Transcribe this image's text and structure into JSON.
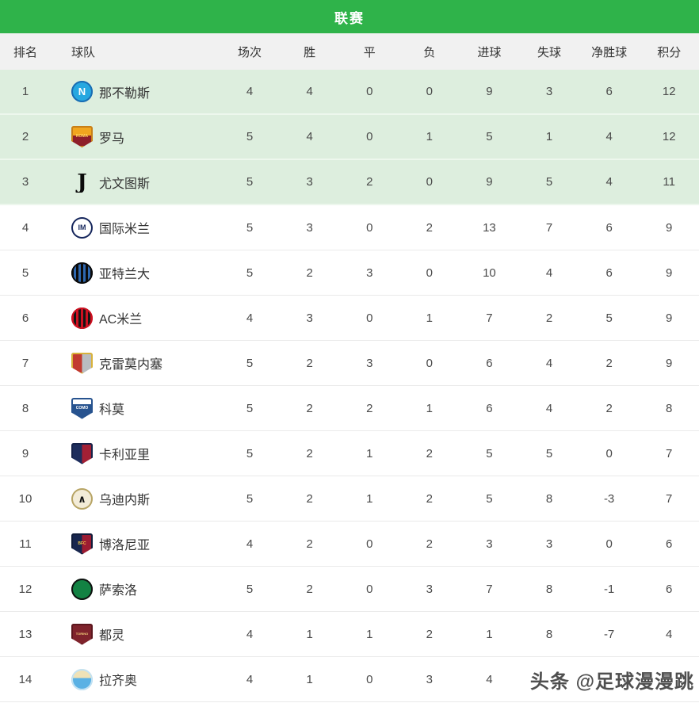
{
  "title": "联赛",
  "columns": [
    "排名",
    "球队",
    "场次",
    "胜",
    "平",
    "负",
    "进球",
    "失球",
    "净胜球",
    "积分"
  ],
  "watermark": "头条 @足球漫漫跳",
  "colors": {
    "header_green": "#2fb34a",
    "highlight_row_green": "#ddeede",
    "column_header_bg": "#f1f1f1"
  },
  "rows": [
    {
      "rank": "1",
      "name": "那不勒斯",
      "p": "4",
      "w": "4",
      "d": "0",
      "l": "0",
      "gf": "9",
      "ga": "3",
      "gd": "6",
      "pts": "12",
      "highlight": true,
      "logo": {
        "shape": "circle",
        "bg": "#27a8e0",
        "ring": "#1a6cb2",
        "label": "N",
        "labelColor": "#ffffff",
        "labelSize": 13
      }
    },
    {
      "rank": "2",
      "name": "罗马",
      "p": "5",
      "w": "4",
      "d": "0",
      "l": "1",
      "gf": "5",
      "ga": "1",
      "gd": "4",
      "pts": "12",
      "highlight": true,
      "logo": {
        "shape": "shield",
        "bg": "linear-gradient(180deg,#f1a61f 45%,#8e1f2a 45%)",
        "ring": "#c87f18",
        "label": "ROMA",
        "labelColor": "#ffd35e",
        "labelSize": 5
      }
    },
    {
      "rank": "3",
      "name": "尤文图斯",
      "p": "5",
      "w": "3",
      "d": "2",
      "l": "0",
      "gf": "9",
      "ga": "5",
      "gd": "4",
      "pts": "11",
      "highlight": true,
      "logo": {
        "shape": "glyph",
        "bg": "transparent",
        "ring": "",
        "label": "J",
        "labelColor": "#0a0a0a",
        "labelSize": 26
      }
    },
    {
      "rank": "4",
      "name": "国际米兰",
      "p": "5",
      "w": "3",
      "d": "0",
      "l": "2",
      "gf": "13",
      "ga": "7",
      "gd": "6",
      "pts": "9",
      "highlight": false,
      "logo": {
        "shape": "circle",
        "bg": "#ffffff",
        "ring": "#15265c",
        "label": "IM",
        "labelColor": "#15265c",
        "labelSize": 9
      }
    },
    {
      "rank": "5",
      "name": "亚特兰大",
      "p": "5",
      "w": "2",
      "d": "3",
      "l": "0",
      "gf": "10",
      "ga": "4",
      "gd": "6",
      "pts": "9",
      "highlight": false,
      "logo": {
        "shape": "circle",
        "bg": "repeating-linear-gradient(90deg,#0b0b0b 0px,#0b0b0b 3px,#2e68b0 3px,#2e68b0 6px)",
        "ring": "#0b0b0b",
        "label": "",
        "labelColor": "#ffffff",
        "labelSize": 6
      }
    },
    {
      "rank": "6",
      "name": "AC米兰",
      "p": "4",
      "w": "3",
      "d": "0",
      "l": "1",
      "gf": "7",
      "ga": "2",
      "gd": "5",
      "pts": "9",
      "highlight": false,
      "logo": {
        "shape": "circle",
        "bg": "repeating-linear-gradient(90deg,#cf1020 0px,#cf1020 3px,#151515 3px,#151515 6px)",
        "ring": "#cf1020",
        "label": "",
        "labelColor": "#ffffff",
        "labelSize": 6
      }
    },
    {
      "rank": "7",
      "name": "克雷莫内塞",
      "p": "5",
      "w": "2",
      "d": "3",
      "l": "0",
      "gf": "6",
      "ga": "4",
      "gd": "2",
      "pts": "9",
      "highlight": false,
      "logo": {
        "shape": "shield",
        "bg": "linear-gradient(90deg,#c23a2f 50%,#b9bdc1 50%)",
        "ring": "#d8b23a",
        "label": "",
        "labelColor": "#ffffff",
        "labelSize": 6
      }
    },
    {
      "rank": "8",
      "name": "科莫",
      "p": "5",
      "w": "2",
      "d": "2",
      "l": "1",
      "gf": "6",
      "ga": "4",
      "gd": "2",
      "pts": "8",
      "highlight": false,
      "logo": {
        "shape": "shield",
        "bg": "linear-gradient(180deg,#ffffff 30%,#27538f 30%)",
        "ring": "#27538f",
        "label": "COMO",
        "labelColor": "#ffffff",
        "labelSize": 5
      }
    },
    {
      "rank": "9",
      "name": "卡利亚里",
      "p": "5",
      "w": "2",
      "d": "1",
      "l": "2",
      "gf": "5",
      "ga": "5",
      "gd": "0",
      "pts": "7",
      "highlight": false,
      "logo": {
        "shape": "shield",
        "bg": "linear-gradient(90deg,#1d2d5c 50%,#a32035 50%)",
        "ring": "#16234a",
        "label": "",
        "labelColor": "#ffffff",
        "labelSize": 6
      }
    },
    {
      "rank": "10",
      "name": "乌迪内斯",
      "p": "5",
      "w": "2",
      "d": "1",
      "l": "2",
      "gf": "5",
      "ga": "8",
      "gd": "-3",
      "pts": "7",
      "highlight": false,
      "logo": {
        "shape": "circle",
        "bg": "#f3ecd8",
        "ring": "#b7a465",
        "label": "∧",
        "labelColor": "#141414",
        "labelSize": 13
      }
    },
    {
      "rank": "11",
      "name": "博洛尼亚",
      "p": "4",
      "w": "2",
      "d": "0",
      "l": "2",
      "gf": "3",
      "ga": "3",
      "gd": "0",
      "pts": "6",
      "highlight": false,
      "logo": {
        "shape": "shield",
        "bg": "linear-gradient(90deg,#17264e 50%,#9c1c32 50%)",
        "ring": "#101c3a",
        "label": "BFC",
        "labelColor": "#f0c84a",
        "labelSize": 5
      }
    },
    {
      "rank": "12",
      "name": "萨索洛",
      "p": "5",
      "w": "2",
      "d": "0",
      "l": "3",
      "gf": "7",
      "ga": "8",
      "gd": "-1",
      "pts": "6",
      "highlight": false,
      "logo": {
        "shape": "circle",
        "bg": "#128243",
        "ring": "#101010",
        "label": "",
        "labelColor": "#ffffff",
        "labelSize": 6
      }
    },
    {
      "rank": "13",
      "name": "都灵",
      "p": "4",
      "w": "1",
      "d": "1",
      "l": "2",
      "gf": "1",
      "ga": "8",
      "gd": "-7",
      "pts": "4",
      "highlight": false,
      "logo": {
        "shape": "shield",
        "bg": "#7f232c",
        "ring": "#5c161d",
        "label": "TORINO",
        "labelColor": "#f3d27c",
        "labelSize": 4
      }
    },
    {
      "rank": "14",
      "name": "拉齐奥",
      "p": "4",
      "w": "1",
      "d": "0",
      "l": "3",
      "gf": "4",
      "ga": "",
      "gd": "",
      "pts": "",
      "highlight": false,
      "logo": {
        "shape": "circle",
        "bg": "linear-gradient(180deg,#f0e2b6 42%,#5ab1e4 42%)",
        "ring": "#c3e2f3",
        "label": "",
        "labelColor": "#ffffff",
        "labelSize": 6
      }
    }
  ]
}
